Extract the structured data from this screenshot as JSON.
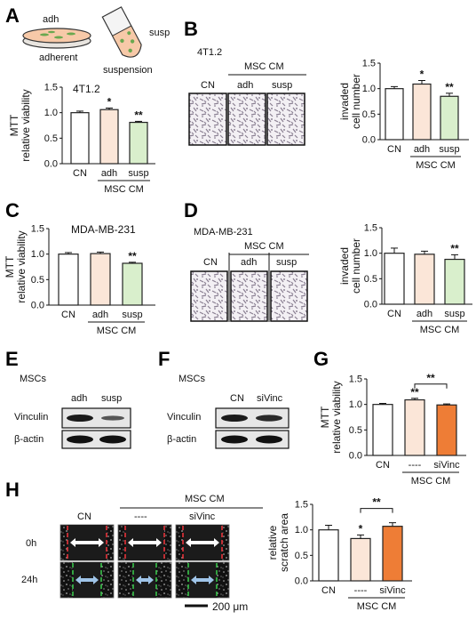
{
  "colors": {
    "cn": "#ffffff",
    "adh": "#fbe6d8",
    "susp": "#d9efcc",
    "sivinc": "#ee7d36",
    "outline": "#222222",
    "scratch_red": "#e8333a",
    "scratch_green": "#38c44a",
    "arrow_white": "#ffffff",
    "arrow_blue": "#9fc4e8"
  },
  "panel_labels": [
    "A",
    "B",
    "C",
    "D",
    "E",
    "F",
    "G",
    "H"
  ],
  "schematic": {
    "dish_label": "adh",
    "dish_caption": "adherent",
    "tube_label": "susp",
    "tube_caption": "suspension"
  },
  "panel_b": {
    "cell_line": "4T1.2",
    "header": "MSC CM",
    "columns": [
      "CN",
      "adh",
      "susp"
    ]
  },
  "panel_d": {
    "cell_line": "MDA-MB-231",
    "header": "MSC CM",
    "columns": [
      "CN",
      "adh",
      "susp"
    ]
  },
  "panel_e": {
    "source": "MSCs",
    "lanes": [
      "adh",
      "susp"
    ],
    "rows": [
      "Vinculin",
      "β-actin"
    ]
  },
  "panel_f": {
    "source": "MSCs",
    "lanes": [
      "CN",
      "siVinc"
    ],
    "rows": [
      "Vinculin",
      "β-actin"
    ]
  },
  "panel_h": {
    "header": "MSC CM",
    "columns": [
      "CN",
      "----",
      "siVinc"
    ],
    "rows": [
      "0h",
      "24h"
    ],
    "scalebar": "200 μm"
  },
  "chart_data": [
    {
      "panel": "A",
      "type": "bar",
      "title": "4T1.2",
      "ylabel": "MTT\nrelative viability",
      "categories": [
        "CN",
        "adh",
        "susp"
      ],
      "group_label": "MSC CM",
      "values": [
        1.0,
        1.06,
        0.81
      ],
      "errors": [
        0.03,
        0.03,
        0.02
      ],
      "significance": [
        "",
        "*",
        "**"
      ],
      "ylim": [
        0,
        1.5
      ],
      "yticks": [
        "0.0",
        "0.5",
        "1.0",
        "1.5"
      ]
    },
    {
      "panel": "B",
      "type": "bar",
      "title": "",
      "ylabel": "invaded\ncell number",
      "categories": [
        "CN",
        "adh",
        "susp"
      ],
      "group_label": "MSC CM",
      "values": [
        1.0,
        1.09,
        0.85
      ],
      "errors": [
        0.04,
        0.07,
        0.06
      ],
      "significance": [
        "",
        "*",
        "**"
      ],
      "ylim": [
        0,
        1.5
      ],
      "yticks": [
        "0.0",
        "0.5",
        "1.0",
        "1.5"
      ]
    },
    {
      "panel": "C",
      "type": "bar",
      "title": "MDA-MB-231",
      "ylabel": "MTT\nrelative viability",
      "categories": [
        "CN",
        "adh",
        "susp"
      ],
      "group_label": "MSC CM",
      "values": [
        1.0,
        1.01,
        0.82
      ],
      "errors": [
        0.03,
        0.03,
        0.02
      ],
      "significance": [
        "",
        "",
        "**"
      ],
      "ylim": [
        0,
        1.5
      ],
      "yticks": [
        "0.0",
        "0.5",
        "1.0",
        "1.5"
      ]
    },
    {
      "panel": "D",
      "type": "bar",
      "title": "",
      "ylabel": "invaded\ncell number",
      "categories": [
        "CN",
        "adh",
        "susp"
      ],
      "group_label": "MSC CM",
      "values": [
        1.0,
        0.98,
        0.88
      ],
      "errors": [
        0.1,
        0.06,
        0.09
      ],
      "significance": [
        "",
        "",
        "**"
      ],
      "ylim": [
        0,
        1.5
      ],
      "yticks": [
        "0.0",
        "0.5",
        "1.0",
        "1.5"
      ]
    },
    {
      "panel": "G",
      "type": "bar",
      "title": "",
      "ylabel": "MTT\nrelative viability",
      "categories": [
        "CN",
        "----",
        "siVinc"
      ],
      "group_label": "MSC CM",
      "values": [
        1.0,
        1.09,
        0.99
      ],
      "errors": [
        0.02,
        0.03,
        0.02
      ],
      "significance": [
        "",
        "**",
        ""
      ],
      "bracket": {
        "from": "----",
        "to": "siVinc",
        "label": "**"
      },
      "ylim": [
        0,
        1.5
      ],
      "yticks": [
        "0.0",
        "0.5",
        "1.0",
        "1.5"
      ]
    },
    {
      "panel": "H",
      "type": "bar",
      "title": "",
      "ylabel": "relative\nscratch area",
      "categories": [
        "CN",
        "----",
        "siVinc"
      ],
      "group_label": "MSC CM",
      "values": [
        1.0,
        0.83,
        1.07
      ],
      "errors": [
        0.09,
        0.07,
        0.07
      ],
      "significance": [
        "",
        "*",
        ""
      ],
      "bracket": {
        "from": "----",
        "to": "siVinc",
        "label": "**"
      },
      "ylim": [
        0,
        1.5
      ],
      "yticks": [
        "0.0",
        "0.5",
        "1.0",
        "1.5"
      ]
    }
  ]
}
